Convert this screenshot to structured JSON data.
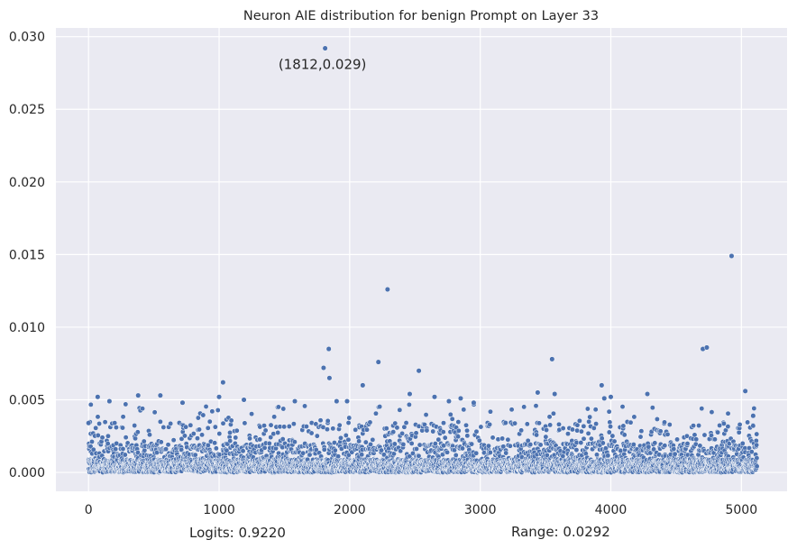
{
  "chart_data": {
    "type": "scatter",
    "title": "Neuron AIE distribution for benign Prompt on Layer 33",
    "xlabel": "",
    "ylabel": "",
    "xlim": [
      -250,
      5350
    ],
    "ylim": [
      -0.0013,
      0.0306
    ],
    "xticks": [
      0,
      1000,
      2000,
      3000,
      4000,
      5000
    ],
    "yticks": [
      0.0,
      0.005,
      0.01,
      0.015,
      0.02,
      0.025,
      0.03
    ],
    "xtick_labels": [
      "0",
      "1000",
      "2000",
      "3000",
      "4000",
      "5000"
    ],
    "ytick_labels": [
      "0.000",
      "0.005",
      "0.010",
      "0.015",
      "0.020",
      "0.025",
      "0.030"
    ],
    "grid": true,
    "background": "#eaeaf2",
    "marker_color": "#4c72b0",
    "n_neurons": 5120,
    "notable_points": [
      {
        "x": 1812,
        "y": 0.0292
      },
      {
        "x": 4925,
        "y": 0.0149
      },
      {
        "x": 2290,
        "y": 0.0126
      },
      {
        "x": 1840,
        "y": 0.0085
      },
      {
        "x": 4705,
        "y": 0.0085
      },
      {
        "x": 4735,
        "y": 0.0086
      },
      {
        "x": 3550,
        "y": 0.0078
      },
      {
        "x": 1800,
        "y": 0.0072
      },
      {
        "x": 2220,
        "y": 0.0076
      },
      {
        "x": 2530,
        "y": 0.007
      },
      {
        "x": 1845,
        "y": 0.0065
      },
      {
        "x": 1030,
        "y": 0.0062
      },
      {
        "x": 2100,
        "y": 0.006
      },
      {
        "x": 3930,
        "y": 0.006
      },
      {
        "x": 5030,
        "y": 0.0056
      },
      {
        "x": 3440,
        "y": 0.0055
      },
      {
        "x": 3570,
        "y": 0.0054
      },
      {
        "x": 4280,
        "y": 0.0054
      },
      {
        "x": 2460,
        "y": 0.0054
      },
      {
        "x": 70,
        "y": 0.0052
      },
      {
        "x": 380,
        "y": 0.0053
      },
      {
        "x": 550,
        "y": 0.0053
      },
      {
        "x": 1000,
        "y": 0.0052
      },
      {
        "x": 2650,
        "y": 0.0052
      },
      {
        "x": 2850,
        "y": 0.0051
      },
      {
        "x": 4000,
        "y": 0.0052
      },
      {
        "x": 160,
        "y": 0.0049
      },
      {
        "x": 1190,
        "y": 0.005
      },
      {
        "x": 1900,
        "y": 0.0049
      },
      {
        "x": 1980,
        "y": 0.0049
      },
      {
        "x": 3950,
        "y": 0.0051
      },
      {
        "x": 1580,
        "y": 0.0049
      },
      {
        "x": 2760,
        "y": 0.0049
      },
      {
        "x": 720,
        "y": 0.0048
      },
      {
        "x": 2950,
        "y": 0.0048
      },
      {
        "x": 5090,
        "y": 0.0039
      },
      {
        "x": 0,
        "y": 0.0034
      }
    ],
    "annotation": {
      "text": "(1812,0.029)",
      "x": 1812,
      "y": 0.0292
    },
    "footer": {
      "logits": "Logits: 0.9220",
      "range": "Range: 0.0292"
    }
  }
}
